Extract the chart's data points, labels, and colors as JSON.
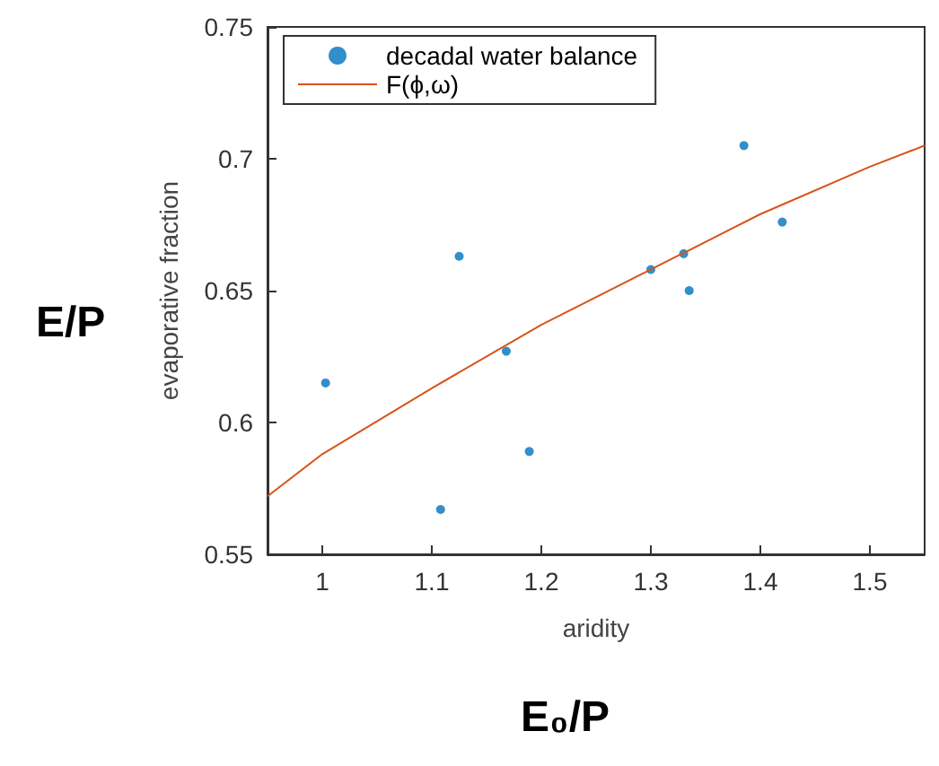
{
  "chart_data": {
    "type": "scatter",
    "xlabel": "aridity",
    "ylabel": "evaporative fraction",
    "annotations": [
      "E/P",
      "E₀/P"
    ],
    "xlim": [
      0.95,
      1.55
    ],
    "xticks": [
      1,
      1.1,
      1.2,
      1.3,
      1.4,
      1.5
    ],
    "ylim": [
      0.55,
      0.75
    ],
    "yticks": [
      0.55,
      0.6,
      0.65,
      0.7,
      0.75
    ],
    "legend": "top left",
    "grid": false,
    "series": [
      {
        "name": "decadal water balance",
        "marker": "circle",
        "color": "#0072bd",
        "x": [
          1.003,
          1.108,
          1.125,
          1.168,
          1.189,
          1.3,
          1.33,
          1.335,
          1.385,
          1.42
        ],
        "values": [
          0.615,
          0.567,
          0.663,
          0.627,
          0.589,
          0.658,
          0.664,
          0.65,
          0.705,
          0.676
        ]
      },
      {
        "name": "F(ϕ,ω)",
        "type": "line",
        "marker": "none",
        "color": "#d95319",
        "x": [
          0.95,
          1.0,
          1.1,
          1.2,
          1.3,
          1.4,
          1.5,
          1.55
        ],
        "values": [
          0.572,
          0.588,
          0.613,
          0.637,
          0.658,
          0.679,
          0.697,
          0.705
        ]
      }
    ]
  }
}
